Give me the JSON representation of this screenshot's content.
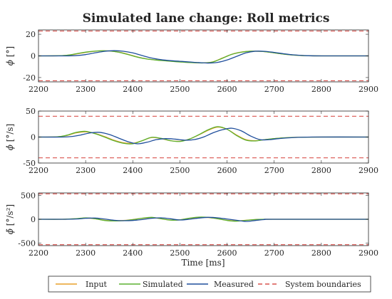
{
  "chart_data": {
    "type": "line",
    "title": "Simulated lane change: Roll metrics",
    "xlabel": "Time [ms]",
    "xlim": [
      2200,
      2900
    ],
    "x_ticks": [
      2200,
      2300,
      2400,
      2500,
      2600,
      2700,
      2800,
      2900
    ],
    "legend": {
      "placement": "bottom",
      "entries": [
        "Input",
        "Simulated",
        "Measured",
        "System boundaries"
      ]
    },
    "colors": {
      "Input": "#e8a02a",
      "Simulated": "#5bb030",
      "Measured": "#1f4e9c",
      "System boundaries": "#d9534f"
    },
    "panels": [
      {
        "ylabel_main": "ϕ",
        "ylabel_unit": " [°]",
        "ylim": [
          -24,
          24
        ],
        "y_ticks": [
          -20,
          0,
          20
        ],
        "boundaries": [
          23,
          -23
        ],
        "series": [
          {
            "name": "Input",
            "x": [
              2200,
              2250,
              2270,
              2290,
              2310,
              2330,
              2350,
              2370,
              2390,
              2410,
              2430,
              2450,
              2470,
              2490,
              2510,
              2530,
              2550,
              2570,
              2590,
              2610,
              2630,
              2650,
              2670,
              2690,
              2710,
              2730,
              2760,
              2800,
              2900
            ],
            "y": [
              0,
              0.2,
              1,
              2.5,
              3.8,
              4.6,
              4.5,
              3.5,
              1.5,
              -1,
              -2.8,
              -3.8,
              -4.5,
              -5.2,
              -5.8,
              -6.2,
              -6.4,
              -5.5,
              -2,
              1.5,
              3.5,
              4.3,
              4.2,
              3.4,
              2.2,
              1.2,
              0.3,
              0,
              0
            ]
          },
          {
            "name": "Simulated",
            "x": [
              2200,
              2250,
              2270,
              2290,
              2310,
              2330,
              2350,
              2370,
              2390,
              2410,
              2430,
              2450,
              2470,
              2490,
              2510,
              2530,
              2550,
              2570,
              2590,
              2610,
              2630,
              2650,
              2670,
              2690,
              2710,
              2730,
              2760,
              2800,
              2900
            ],
            "y": [
              0,
              0.2,
              1.2,
              2.8,
              4,
              4.7,
              4.6,
              3.4,
              1.2,
              -1.2,
              -2.9,
              -3.9,
              -4.6,
              -5.3,
              -5.9,
              -6.3,
              -6.5,
              -5.6,
              -2.2,
              1.4,
              3.4,
              4.3,
              4.2,
              3.4,
              2.2,
              1.2,
              0.3,
              0,
              0
            ]
          },
          {
            "name": "Measured",
            "x": [
              2200,
              2250,
              2280,
              2300,
              2320,
              2340,
              2360,
              2380,
              2400,
              2420,
              2440,
              2460,
              2480,
              2500,
              2520,
              2540,
              2560,
              2580,
              2600,
              2620,
              2640,
              2660,
              2680,
              2700,
              2720,
              2740,
              2770,
              2810,
              2900
            ],
            "y": [
              0,
              0,
              0.3,
              1.2,
              2.8,
              4.2,
              4.8,
              4.3,
              2.8,
              0.3,
              -2,
              -3.5,
              -4.4,
              -5,
              -5.6,
              -6.2,
              -6.6,
              -6,
              -3.8,
              -0.5,
              2.8,
              4.3,
              4.2,
              3.2,
              2,
              1,
              0.2,
              0,
              0
            ]
          }
        ]
      },
      {
        "ylabel_main": "ϕ̇",
        "ylabel_unit": " [°/s]",
        "ylim": [
          -50,
          50
        ],
        "y_ticks": [
          -50,
          0,
          50
        ],
        "boundaries": [
          40,
          -40
        ],
        "series": [
          {
            "name": "Input",
            "x": [
              2200,
              2240,
              2260,
              2280,
              2300,
              2320,
              2340,
              2360,
              2380,
              2400,
              2420,
              2440,
              2460,
              2480,
              2500,
              2520,
              2540,
              2560,
              2580,
              2600,
              2620,
              2640,
              2660,
              2680,
              2700,
              2720,
              2750,
              2800,
              2900
            ],
            "y": [
              0,
              0.5,
              3,
              8,
              10,
              7,
              1,
              -6,
              -11,
              -12,
              -7,
              -1,
              -3,
              -7,
              -8,
              -4,
              4,
              13,
              19,
              15,
              4,
              -5,
              -7,
              -5,
              -3,
              -1.5,
              -0.5,
              0,
              0
            ]
          },
          {
            "name": "Simulated",
            "x": [
              2200,
              2240,
              2260,
              2280,
              2300,
              2320,
              2340,
              2360,
              2380,
              2400,
              2420,
              2440,
              2460,
              2480,
              2500,
              2520,
              2540,
              2560,
              2580,
              2600,
              2620,
              2640,
              2660,
              2680,
              2700,
              2720,
              2750,
              2800,
              2900
            ],
            "y": [
              0,
              0.5,
              3.5,
              9,
              11,
              6.5,
              0,
              -7,
              -12,
              -13,
              -7,
              -0.5,
              -2.5,
              -7,
              -8.5,
              -4,
              4.5,
              14,
              20,
              15,
              3,
              -6,
              -7.5,
              -5,
              -3,
              -1.5,
              -0.5,
              0,
              0
            ]
          },
          {
            "name": "Measured",
            "x": [
              2200,
              2250,
              2270,
              2290,
              2310,
              2330,
              2350,
              2370,
              2390,
              2410,
              2430,
              2450,
              2470,
              2490,
              2510,
              2530,
              2550,
              2570,
              2590,
              2610,
              2630,
              2650,
              2670,
              2690,
              2710,
              2740,
              2780,
              2900
            ],
            "y": [
              0,
              0,
              1,
              4,
              8,
              9,
              5,
              -2,
              -9,
              -13,
              -10,
              -5,
              -3,
              -4,
              -6,
              -5,
              0,
              8,
              14,
              17,
              12,
              2,
              -5,
              -5,
              -3,
              -1,
              0,
              0
            ]
          }
        ]
      },
      {
        "ylabel_main": "ϕ̈",
        "ylabel_unit": " [°/s²]",
        "ylim": [
          -550,
          550
        ],
        "y_ticks": [
          -500,
          0,
          500
        ],
        "boundaries": [
          530,
          -530
        ],
        "series": [
          {
            "name": "Input",
            "x": [
              2200,
              2250,
              2280,
              2300,
              2320,
              2340,
              2360,
              2380,
              2400,
              2420,
              2440,
              2460,
              2480,
              2500,
              2520,
              2540,
              2560,
              2580,
              2600,
              2620,
              2640,
              2660,
              2680,
              2700,
              2900
            ],
            "y": [
              0,
              0,
              10,
              25,
              10,
              -20,
              -30,
              -25,
              -5,
              20,
              35,
              10,
              -15,
              -10,
              20,
              40,
              35,
              10,
              -20,
              -35,
              -20,
              -5,
              0,
              0,
              0
            ]
          },
          {
            "name": "Simulated",
            "x": [
              2200,
              2250,
              2280,
              2300,
              2320,
              2340,
              2360,
              2380,
              2400,
              2420,
              2440,
              2460,
              2480,
              2500,
              2520,
              2540,
              2560,
              2580,
              2600,
              2620,
              2640,
              2660,
              2680,
              2700,
              2900
            ],
            "y": [
              0,
              0,
              12,
              30,
              12,
              -25,
              -35,
              -30,
              -8,
              22,
              40,
              12,
              -18,
              -12,
              22,
              45,
              40,
              12,
              -25,
              -40,
              -22,
              -5,
              0,
              0,
              0
            ]
          },
          {
            "name": "Measured",
            "x": [
              2200,
              2250,
              2280,
              2300,
              2320,
              2340,
              2360,
              2380,
              2400,
              2420,
              2440,
              2460,
              2480,
              2500,
              2520,
              2540,
              2560,
              2580,
              2600,
              2620,
              2640,
              2660,
              2680,
              2700,
              2900
            ],
            "y": [
              0,
              0,
              5,
              20,
              25,
              5,
              -20,
              -30,
              -25,
              -5,
              20,
              30,
              10,
              -15,
              0,
              25,
              40,
              30,
              5,
              -20,
              -45,
              -25,
              -5,
              0,
              0
            ]
          }
        ]
      }
    ]
  }
}
